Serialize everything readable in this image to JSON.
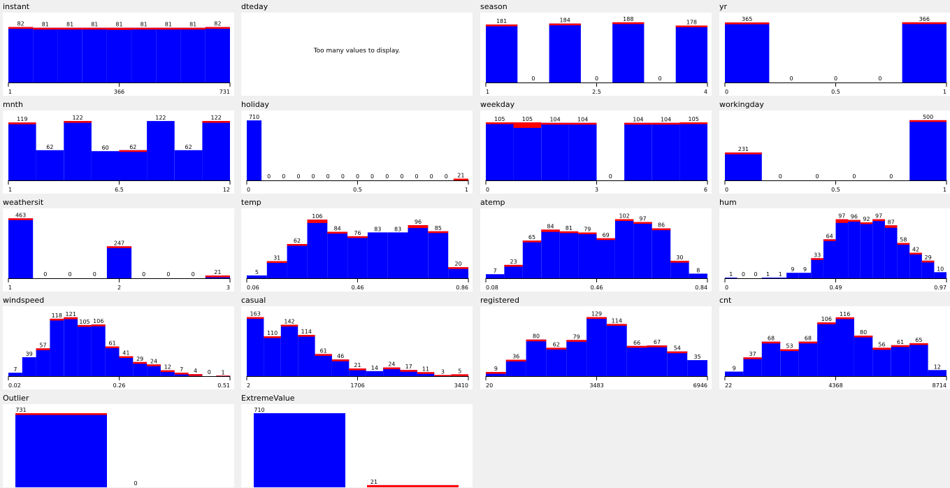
{
  "colors": {
    "class_a": "#0000ff",
    "class_b": "#ff0000",
    "background": "#f0f0f0",
    "plot_bg": "#ffffff"
  },
  "panels": [
    {
      "title": "instant"
    },
    {
      "title": "dteday",
      "message": "Too many values to display."
    },
    {
      "title": "season"
    },
    {
      "title": "yr"
    },
    {
      "title": "mnth"
    },
    {
      "title": "holiday"
    },
    {
      "title": "weekday"
    },
    {
      "title": "workingday"
    },
    {
      "title": "weathersit"
    },
    {
      "title": "temp"
    },
    {
      "title": "atemp"
    },
    {
      "title": "hum"
    },
    {
      "title": "windspeed"
    },
    {
      "title": "casual"
    },
    {
      "title": "registered"
    },
    {
      "title": "cnt"
    },
    {
      "title": "Outlier"
    },
    {
      "title": "ExtremeValue"
    }
  ],
  "chart_data": [
    {
      "name": "instant",
      "type": "bar",
      "counts": [
        82,
        81,
        81,
        81,
        81,
        81,
        81,
        81,
        82
      ],
      "red": [
        1,
        1,
        1,
        2,
        3,
        1,
        1,
        1,
        1
      ],
      "ticks": [
        "1",
        "366",
        "731"
      ],
      "tick_positions": [
        0,
        0.5,
        1
      ],
      "ymax": 90
    },
    {
      "name": "dteday",
      "type": "none"
    },
    {
      "name": "season",
      "type": "bar",
      "counts": [
        181,
        0,
        184,
        0,
        188,
        0,
        178
      ],
      "red": [
        2,
        0,
        1,
        0,
        1,
        0,
        3
      ],
      "widths": [
        1,
        1,
        1,
        1,
        1,
        1,
        1
      ],
      "ticks": [
        "1",
        "2.5",
        "4"
      ],
      "tick_positions": [
        0,
        0.5,
        1
      ],
      "ymax": 190
    },
    {
      "name": "yr",
      "type": "bar",
      "counts": [
        365,
        0,
        0,
        0,
        366
      ],
      "red": [
        1,
        0,
        0,
        0,
        1
      ],
      "ticks": [
        "0",
        "0.5",
        "1"
      ],
      "tick_positions": [
        0,
        0.5,
        1
      ],
      "ymax": 370
    },
    {
      "name": "mnth",
      "type": "bar",
      "counts": [
        119,
        62,
        122,
        60,
        62,
        122,
        62,
        122
      ],
      "red": [
        3,
        0,
        2,
        0,
        1,
        0,
        0,
        3
      ],
      "ticks": [
        "1",
        "6.5",
        "12"
      ],
      "tick_positions": [
        0,
        0.5,
        1
      ],
      "ymax": 125
    },
    {
      "name": "holiday",
      "type": "bar",
      "counts": [
        710,
        0,
        0,
        0,
        0,
        0,
        0,
        0,
        0,
        0,
        0,
        0,
        0,
        0,
        21
      ],
      "red": [
        0,
        0,
        0,
        0,
        0,
        0,
        0,
        0,
        0,
        0,
        0,
        0,
        0,
        0,
        21
      ],
      "ticks": [
        "0",
        "0.5",
        "1"
      ],
      "tick_positions": [
        0,
        0.5,
        1
      ],
      "ymax": 720
    },
    {
      "name": "weekday",
      "type": "bar",
      "counts": [
        105,
        105,
        104,
        104,
        0,
        104,
        104,
        105
      ],
      "red": [
        1,
        10,
        1,
        1,
        0,
        1,
        1,
        1
      ],
      "ticks": [
        "0",
        "3",
        "6"
      ],
      "tick_positions": [
        0,
        0.5,
        1
      ],
      "ymax": 110
    },
    {
      "name": "workingday",
      "type": "bar",
      "counts": [
        231,
        0,
        0,
        0,
        0,
        500
      ],
      "red": [
        10,
        0,
        0,
        0,
        0,
        1
      ],
      "ticks": [
        "0",
        "0.5",
        "1"
      ],
      "tick_positions": [
        0,
        0.5,
        1
      ],
      "ymax": 505
    },
    {
      "name": "weathersit",
      "type": "bar",
      "counts": [
        463,
        0,
        0,
        0,
        247,
        0,
        0,
        0,
        21
      ],
      "red": [
        9,
        0,
        0,
        0,
        3,
        0,
        0,
        0,
        1
      ],
      "ticks": [
        "1",
        "2",
        "3"
      ],
      "tick_positions": [
        0,
        0.5,
        1
      ],
      "ymax": 470
    },
    {
      "name": "temp",
      "type": "bar",
      "counts": [
        5,
        31,
        62,
        106,
        84,
        76,
        83,
        83,
        96,
        85,
        20
      ],
      "red": [
        0,
        1,
        1,
        6,
        1,
        1,
        0,
        0,
        5,
        3,
        1
      ],
      "ticks": [
        "0.06",
        "0.46",
        "0.86"
      ],
      "tick_positions": [
        0,
        0.5,
        1
      ],
      "ymax": 110
    },
    {
      "name": "atemp",
      "type": "bar",
      "counts": [
        7,
        23,
        65,
        84,
        81,
        79,
        69,
        102,
        97,
        86,
        30,
        8
      ],
      "red": [
        0,
        2,
        1,
        4,
        3,
        1,
        1,
        2,
        2,
        3,
        1,
        0
      ],
      "ticks": [
        "0.08",
        "0.46",
        "0.84"
      ],
      "tick_positions": [
        0,
        0.5,
        1
      ],
      "ymax": 105
    },
    {
      "name": "hum",
      "type": "bar",
      "counts": [
        1,
        0,
        0,
        1,
        1,
        9,
        9,
        33,
        64,
        97,
        96,
        92,
        97,
        87,
        58,
        42,
        29,
        10
      ],
      "red": [
        0,
        0,
        0,
        0,
        0,
        0,
        0,
        1,
        1,
        6,
        3,
        2,
        3,
        4,
        2,
        1,
        1,
        0
      ],
      "ticks": [
        "0",
        "0.49",
        "0.97"
      ],
      "tick_positions": [
        0,
        0.5,
        1
      ],
      "ymax": 100
    },
    {
      "name": "windspeed",
      "type": "bar",
      "counts": [
        7,
        39,
        57,
        118,
        121,
        105,
        106,
        61,
        41,
        29,
        24,
        12,
        7,
        4,
        0,
        1
      ],
      "red": [
        0,
        0,
        1,
        2,
        4,
        3,
        2,
        1,
        1,
        1,
        1,
        1,
        1,
        1,
        0,
        1
      ],
      "ticks": [
        "0.02",
        "0.26",
        "0.51"
      ],
      "tick_positions": [
        0,
        0.5,
        1
      ],
      "ymax": 125
    },
    {
      "name": "casual",
      "type": "bar",
      "counts": [
        163,
        110,
        142,
        114,
        61,
        46,
        21,
        14,
        24,
        17,
        11,
        3,
        5
      ],
      "red": [
        2,
        2,
        1,
        2,
        2,
        1,
        1,
        0,
        1,
        1,
        1,
        1,
        1
      ],
      "ticks": [
        "2",
        "1706",
        "3410"
      ],
      "tick_positions": [
        0,
        0.5,
        1
      ],
      "ymax": 168
    },
    {
      "name": "registered",
      "type": "bar",
      "counts": [
        9,
        36,
        80,
        62,
        79,
        129,
        114,
        66,
        67,
        54,
        35
      ],
      "red": [
        1,
        2,
        1,
        2,
        2,
        1,
        1,
        1,
        1,
        1,
        0
      ],
      "ticks": [
        "20",
        "3483",
        "6946"
      ],
      "tick_positions": [
        0,
        0.5,
        1
      ],
      "ymax": 133
    },
    {
      "name": "cnt",
      "type": "bar",
      "counts": [
        9,
        37,
        68,
        53,
        68,
        106,
        116,
        80,
        56,
        61,
        65,
        12
      ],
      "red": [
        0,
        2,
        1,
        1,
        2,
        2,
        1,
        1,
        4,
        1,
        1,
        0
      ],
      "ticks": [
        "22",
        "4368",
        "8714"
      ],
      "tick_positions": [
        0,
        0.5,
        1
      ],
      "ymax": 120
    },
    {
      "name": "Outlier",
      "type": "bar",
      "counts": [
        731,
        0
      ],
      "red": [
        5,
        0
      ],
      "ticks": [],
      "tick_positions": [],
      "ymax": 731
    },
    {
      "name": "ExtremeValue",
      "type": "bar",
      "counts": [
        710,
        21
      ],
      "red": [
        0,
        21
      ],
      "ticks": [],
      "tick_positions": [],
      "ymax": 710
    }
  ]
}
